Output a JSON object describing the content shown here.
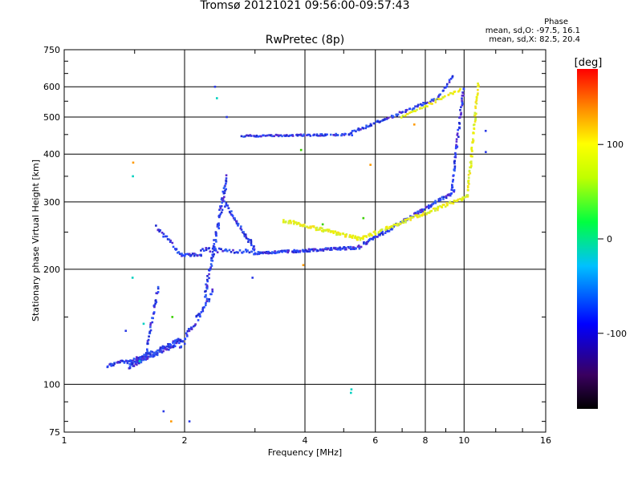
{
  "chart_data": {
    "type": "scatter",
    "title": "Tromsø 20121021 09:56:00-09:57:43",
    "subtitle": "RwPretec (8p)",
    "xlabel": "Frequency [MHz]",
    "ylabel": "Stationary phase Virtual Height [km]",
    "x_scale": "log",
    "y_scale": "log",
    "xlim": [
      1,
      16
    ],
    "ylim": [
      75,
      750
    ],
    "x_ticks": [
      1,
      2,
      4,
      6,
      8,
      10,
      16
    ],
    "y_ticks": [
      75,
      100,
      200,
      300,
      400,
      500,
      600,
      750
    ],
    "grid": true,
    "phase_stats": {
      "heading": "Phase",
      "o_line": "mean, sd,O: -97.5, 16.1",
      "x_line": "mean, sd,X:  82.5, 20.4"
    },
    "colorbar": {
      "label": "[deg]",
      "ticks": [
        100,
        0,
        -100
      ],
      "range": [
        -180,
        180
      ],
      "colors": [
        "#000000",
        "#3a0060",
        "#0000ff",
        "#00c0ff",
        "#00ff40",
        "#c0ff00",
        "#ffff00",
        "#ff9000",
        "#ff0000"
      ]
    },
    "series": [
      {
        "phase": -100,
        "color": "#2a3ae6",
        "traces": [
          {
            "f": [
              1.28,
              1.6
            ],
            "h": [
              112,
              118
            ],
            "n": 40,
            "jitter": 4
          },
          {
            "f": [
              1.45,
              1.95
            ],
            "h": [
              112,
              130
            ],
            "n": 130,
            "jitter": 8
          },
          {
            "f": [
              1.6,
              1.72
            ],
            "h": [
              120,
              178
            ],
            "n": 35,
            "jitter": 6
          },
          {
            "f": [
              1.95,
              2.35
            ],
            "h": [
              125,
              175
            ],
            "n": 45,
            "jitter": 10
          },
          {
            "f": [
              2.25,
              2.55
            ],
            "h": [
              170,
              345
            ],
            "n": 85,
            "jitter": 12
          },
          {
            "f": [
              2.5,
              3.0
            ],
            "h": [
              300,
              225
            ],
            "n": 45,
            "jitter": 6
          },
          {
            "f": [
              1.7,
              1.95
            ],
            "h": [
              258,
              220
            ],
            "n": 22,
            "jitter": 4
          },
          {
            "f": [
              1.95,
              2.2
            ],
            "h": [
              218,
              218
            ],
            "n": 22,
            "jitter": 3
          },
          {
            "f": [
              2.2,
              3.0
            ],
            "h": [
              225,
              222
            ],
            "n": 40,
            "jitter": 5
          },
          {
            "f": [
              3.0,
              5.5
            ],
            "h": [
              220,
              228
            ],
            "n": 140,
            "jitter": 3
          },
          {
            "f": [
              5.5,
              9.5
            ],
            "h": [
              230,
              320
            ],
            "n": 130,
            "jitter": 4
          },
          {
            "f": [
              9.3,
              9.98
            ],
            "h": [
              320,
              600
            ],
            "n": 55,
            "jitter": 4
          },
          {
            "f": [
              2.8,
              5.2
            ],
            "h": [
              446,
              450
            ],
            "n": 90,
            "jitter": 2
          },
          {
            "f": [
              5.2,
              8.6
            ],
            "h": [
              455,
              560
            ],
            "n": 75,
            "jitter": 3
          },
          {
            "f": [
              8.6,
              9.4
            ],
            "h": [
              560,
              640
            ],
            "n": 15,
            "jitter": 3
          }
        ]
      },
      {
        "phase": 90,
        "color": "#e5f00f",
        "traces": [
          {
            "f": [
              3.55,
              5.5
            ],
            "h": [
              268,
              240
            ],
            "n": 95,
            "jitter": 4
          },
          {
            "f": [
              5.5,
              10.2
            ],
            "h": [
              240,
              310
            ],
            "n": 110,
            "jitter": 4
          },
          {
            "f": [
              10.2,
              10.85
            ],
            "h": [
              310,
              610
            ],
            "n": 65,
            "jitter": 5
          },
          {
            "f": [
              7.0,
              9.8
            ],
            "h": [
              500,
              590
            ],
            "n": 40,
            "jitter": 3
          }
        ]
      },
      {
        "phase": 0,
        "color": "#00d0c0",
        "points": [
          {
            "f": 1.48,
            "h": 350
          },
          {
            "f": 1.48,
            "h": 190
          },
          {
            "f": 5.2,
            "h": 95
          },
          {
            "f": 5.25,
            "h": 97
          },
          {
            "f": 2.42,
            "h": 560
          },
          {
            "f": 1.55,
            "h": 115
          },
          {
            "f": 1.58,
            "h": 144
          }
        ]
      },
      {
        "phase": 40,
        "color": "#3ad000",
        "points": [
          {
            "f": 1.87,
            "h": 150
          },
          {
            "f": 4.45,
            "h": 262
          },
          {
            "f": 5.6,
            "h": 272
          },
          {
            "f": 3.9,
            "h": 410
          }
        ]
      },
      {
        "phase": 130,
        "color": "#ff9a00",
        "points": [
          {
            "f": 1.86,
            "h": 80
          },
          {
            "f": 1.49,
            "h": 380
          },
          {
            "f": 3.95,
            "h": 205
          },
          {
            "f": 5.85,
            "h": 375
          },
          {
            "f": 7.5,
            "h": 478
          }
        ]
      }
    ],
    "outliers_blue": [
      {
        "f": 1.78,
        "h": 85
      },
      {
        "f": 2.05,
        "h": 80
      },
      {
        "f": 1.42,
        "h": 138
      },
      {
        "f": 2.38,
        "h": 600
      },
      {
        "f": 11.3,
        "h": 460
      },
      {
        "f": 11.35,
        "h": 405
      },
      {
        "f": 2.55,
        "h": 500
      },
      {
        "f": 2.95,
        "h": 190
      }
    ]
  }
}
